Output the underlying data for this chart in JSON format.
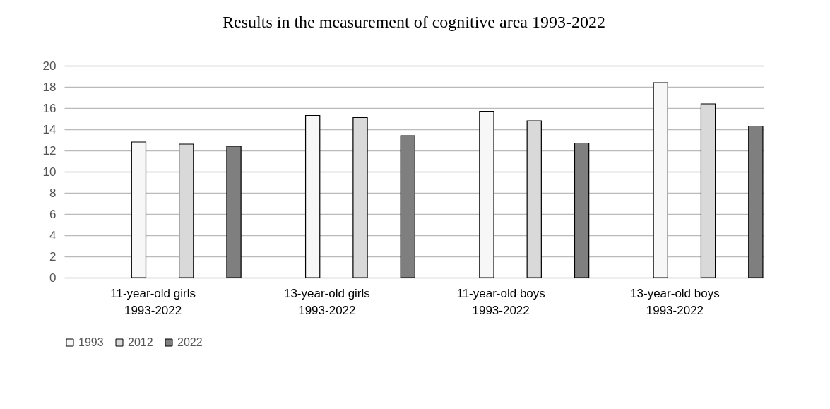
{
  "chart_data": {
    "type": "bar",
    "title": "Results in the measurement of cognitive area 1993-2022",
    "categories": [
      "11-year-old girls\n1993-2022",
      "13-year-old girls\n1993-2022",
      "11-year-old boys\n1993-2022",
      "13-year-old boys\n1993-2022"
    ],
    "series": [
      {
        "name": "1993",
        "color": "#f7f7f7",
        "values": [
          12.8,
          15.3,
          15.7,
          18.4
        ]
      },
      {
        "name": "2012",
        "color": "#d9d9d9",
        "values": [
          12.6,
          15.1,
          14.8,
          16.4
        ]
      },
      {
        "name": "2022",
        "color": "#7f7f7f",
        "values": [
          12.4,
          13.4,
          12.7,
          14.3
        ]
      }
    ],
    "ylim": [
      0,
      20
    ],
    "yticks": [
      0,
      2,
      4,
      6,
      8,
      10,
      12,
      14,
      16,
      18,
      20
    ],
    "grid": "y",
    "legend": "bottom"
  }
}
